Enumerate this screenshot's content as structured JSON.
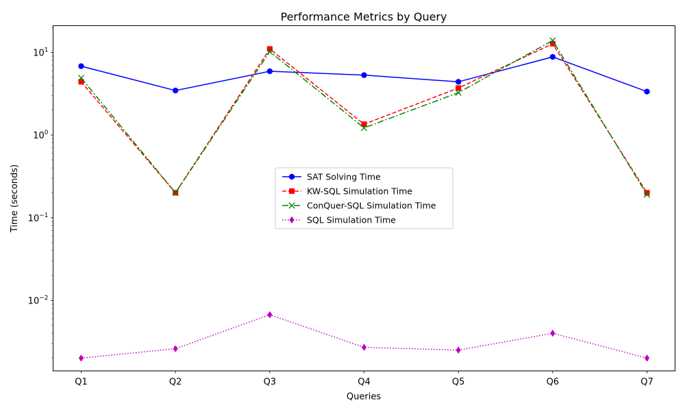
{
  "chart_data": {
    "type": "line",
    "title": "Performance Metrics by Query",
    "xlabel": "Queries",
    "ylabel": "Time (seconds)",
    "yscale": "log",
    "ylim": [
      0.0014,
      21
    ],
    "grid": false,
    "legend": "center",
    "categories": [
      "Q1",
      "Q2",
      "Q3",
      "Q4",
      "Q5",
      "Q6",
      "Q7"
    ],
    "y_ticks": [
      {
        "value": 0.01,
        "base": "10",
        "exp": "−2"
      },
      {
        "value": 0.1,
        "base": "10",
        "exp": "−1"
      },
      {
        "value": 1,
        "base": "10",
        "exp": "0"
      },
      {
        "value": 10,
        "base": "10",
        "exp": "1"
      }
    ],
    "series": [
      {
        "name": "SAT Solving Time",
        "color": "#0000ff",
        "marker": "circle",
        "dash": "solid",
        "values": [
          6.8,
          3.45,
          5.9,
          5.3,
          4.4,
          8.8,
          3.35
        ]
      },
      {
        "name": "KW-SQL Simulation Time",
        "color": "#ff0000",
        "marker": "square",
        "dash": "dashed",
        "values": [
          4.4,
          0.2,
          11.0,
          1.35,
          3.7,
          12.7,
          0.2
        ]
      },
      {
        "name": "ConQuer-SQL Simulation Time",
        "color": "#008000",
        "marker": "x",
        "dash": "dashdot",
        "values": [
          4.9,
          0.2,
          10.2,
          1.22,
          3.25,
          13.9,
          0.19
        ]
      },
      {
        "name": "SQL Simulation Time",
        "color": "#bf00bf",
        "marker": "diamond",
        "dash": "dotted",
        "values": [
          0.002,
          0.0026,
          0.0067,
          0.0027,
          0.0025,
          0.004,
          0.002
        ]
      }
    ]
  }
}
